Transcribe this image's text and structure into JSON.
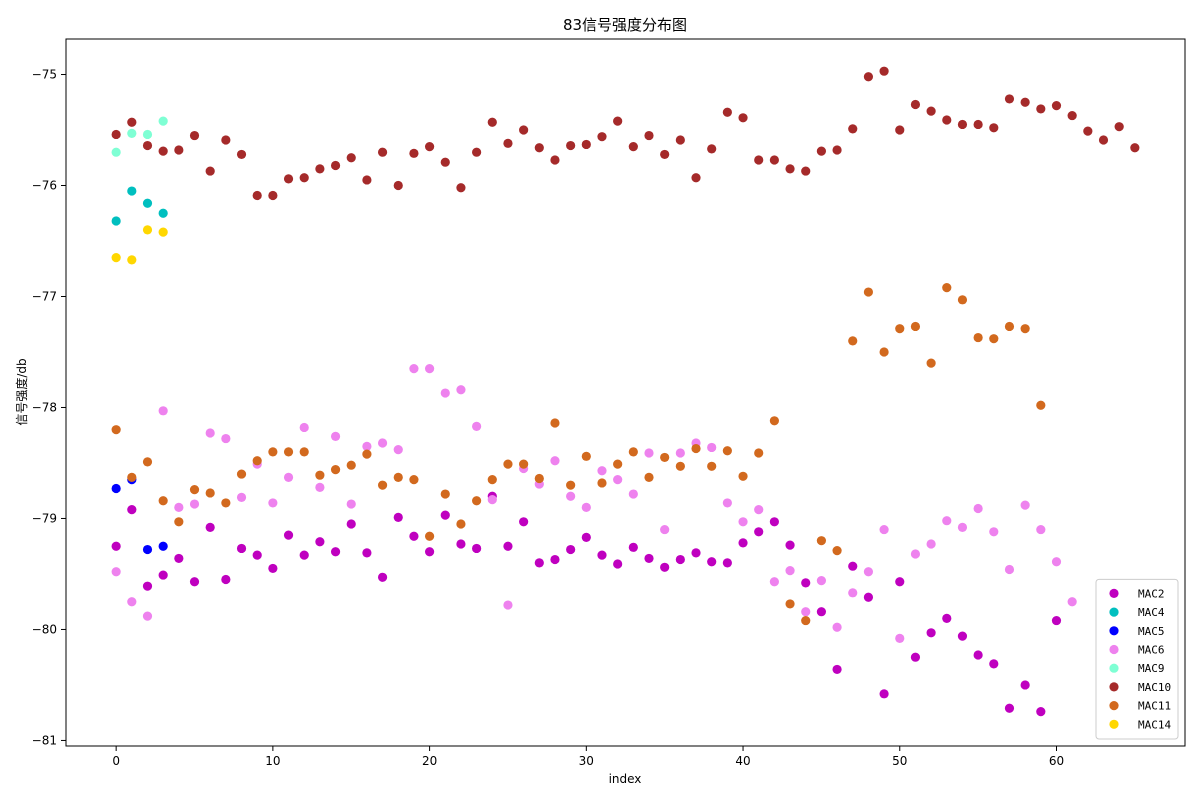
{
  "chart_data": {
    "type": "scatter",
    "title": "83信号强度分布图",
    "xlabel": "index",
    "ylabel": "信号强度/db",
    "xlim": [
      -3.2,
      68.2
    ],
    "ylim": [
      -81.05,
      -74.68
    ],
    "xticks": [
      0,
      10,
      20,
      30,
      40,
      50,
      60
    ],
    "yticks": [
      -81,
      -80,
      -79,
      -78,
      -77,
      -76,
      -75
    ],
    "grid": false,
    "legend_position": "bottom-right",
    "series": [
      {
        "name": "MAC2",
        "color": "#bf00bf",
        "x": [
          0,
          1,
          2,
          3,
          4,
          5,
          6,
          7,
          8,
          9,
          10,
          11,
          12,
          13,
          14,
          15,
          16,
          17,
          18,
          19,
          20,
          21,
          22,
          23,
          24,
          25,
          26,
          27,
          28,
          29,
          30,
          31,
          32,
          33,
          34,
          35,
          36,
          37,
          38,
          39,
          40,
          41,
          42,
          43,
          44,
          45,
          46,
          47,
          48,
          49,
          50,
          51,
          52,
          53,
          54,
          55,
          56,
          57,
          58,
          59,
          60
        ],
        "y": [
          -79.25,
          -78.92,
          -79.61,
          -79.51,
          -79.36,
          -79.57,
          -79.08,
          -79.55,
          -79.27,
          -79.33,
          -79.45,
          -79.15,
          -79.33,
          -79.21,
          -79.3,
          -79.05,
          -79.31,
          -79.53,
          -78.99,
          -79.16,
          -79.3,
          -78.97,
          -79.23,
          -79.27,
          -78.8,
          -79.25,
          -79.03,
          -79.4,
          -79.37,
          -79.28,
          -79.17,
          -79.33,
          -79.41,
          -79.26,
          -79.36,
          -79.44,
          -79.37,
          -79.31,
          -79.39,
          -79.4,
          -79.22,
          -79.12,
          -79.03,
          -79.24,
          -79.58,
          -79.84,
          -80.36,
          -79.43,
          -79.71,
          -80.58,
          -79.57,
          -80.25,
          -80.03,
          -79.9,
          -80.06,
          -80.23,
          -80.31,
          -80.71,
          -80.5,
          -80.74,
          -79.92
        ]
      },
      {
        "name": "MAC4",
        "color": "#00bfbf",
        "x": [
          0,
          1,
          2,
          3
        ],
        "y": [
          -76.32,
          -76.05,
          -76.16,
          -76.25
        ]
      },
      {
        "name": "MAC5",
        "color": "#0000ff",
        "x": [
          0,
          1,
          2,
          3
        ],
        "y": [
          -78.73,
          -78.65,
          -79.28,
          -79.25
        ]
      },
      {
        "name": "MAC6",
        "color": "#ee82ee",
        "x": [
          0,
          1,
          2,
          3,
          4,
          5,
          6,
          7,
          8,
          9,
          10,
          11,
          12,
          13,
          14,
          15,
          16,
          17,
          18,
          19,
          20,
          21,
          22,
          23,
          24,
          25,
          26,
          27,
          28,
          29,
          30,
          31,
          32,
          33,
          34,
          35,
          36,
          37,
          38,
          39,
          40,
          41,
          42,
          43,
          44,
          45,
          46,
          47,
          48,
          49,
          50,
          51,
          52,
          53,
          54,
          55,
          56,
          57,
          58,
          59,
          60,
          61
        ],
        "y": [
          -79.48,
          -79.75,
          -79.88,
          -78.03,
          -78.9,
          -78.87,
          -78.23,
          -78.28,
          -78.81,
          -78.51,
          -78.86,
          -78.63,
          -78.18,
          -78.72,
          -78.26,
          -78.87,
          -78.35,
          -78.32,
          -78.38,
          -77.65,
          -77.65,
          -77.87,
          -77.84,
          -78.17,
          -78.83,
          -79.78,
          -78.55,
          -78.69,
          -78.48,
          -78.8,
          -78.9,
          -78.57,
          -78.65,
          -78.78,
          -78.41,
          -79.1,
          -78.41,
          -78.32,
          -78.36,
          -78.86,
          -79.03,
          -78.92,
          -79.57,
          -79.47,
          -79.84,
          -79.56,
          -79.98,
          -79.67,
          -79.48,
          -79.1,
          -80.08,
          -79.32,
          -79.23,
          -79.02,
          -79.08,
          -78.91,
          -79.12,
          -79.46,
          -78.88,
          -79.1,
          -79.39,
          -79.75
        ]
      },
      {
        "name": "MAC9",
        "color": "#7fffd4",
        "x": [
          0,
          1,
          2,
          3
        ],
        "y": [
          -75.7,
          -75.53,
          -75.54,
          -75.42
        ]
      },
      {
        "name": "MAC10",
        "color": "#a52a2a",
        "x": [
          0,
          1,
          2,
          3,
          4,
          5,
          6,
          7,
          8,
          9,
          10,
          11,
          12,
          13,
          14,
          15,
          16,
          17,
          18,
          19,
          20,
          21,
          22,
          23,
          24,
          25,
          26,
          27,
          28,
          29,
          30,
          31,
          32,
          33,
          34,
          35,
          36,
          37,
          38,
          39,
          40,
          41,
          42,
          43,
          44,
          45,
          46,
          47,
          48,
          49,
          50,
          51,
          52,
          53,
          54,
          55,
          56,
          57,
          58,
          59,
          60,
          61,
          62,
          63,
          64,
          65
        ],
        "y": [
          -75.54,
          -75.43,
          -75.64,
          -75.69,
          -75.68,
          -75.55,
          -75.87,
          -75.59,
          -75.72,
          -76.09,
          -76.09,
          -75.94,
          -75.93,
          -75.85,
          -75.82,
          -75.75,
          -75.95,
          -75.7,
          -76.0,
          -75.71,
          -75.65,
          -75.79,
          -76.02,
          -75.7,
          -75.43,
          -75.62,
          -75.5,
          -75.66,
          -75.77,
          -75.64,
          -75.63,
          -75.56,
          -75.42,
          -75.65,
          -75.55,
          -75.72,
          -75.59,
          -75.93,
          -75.67,
          -75.34,
          -75.39,
          -75.77,
          -75.77,
          -75.85,
          -75.87,
          -75.69,
          -75.68,
          -75.49,
          -75.02,
          -74.97,
          -75.5,
          -75.27,
          -75.33,
          -75.41,
          -75.45,
          -75.45,
          -75.48,
          -75.22,
          -75.25,
          -75.31,
          -75.28,
          -75.37,
          -75.51,
          -75.59,
          -75.47,
          -75.66
        ]
      },
      {
        "name": "MAC11",
        "color": "#d2691e",
        "x": [
          0,
          1,
          2,
          3,
          4,
          5,
          6,
          7,
          8,
          9,
          10,
          11,
          12,
          13,
          14,
          15,
          16,
          17,
          18,
          19,
          20,
          21,
          22,
          23,
          24,
          25,
          26,
          27,
          28,
          29,
          30,
          31,
          32,
          33,
          34,
          35,
          36,
          37,
          38,
          39,
          40,
          41,
          42,
          43,
          44,
          45,
          46,
          47,
          48,
          49,
          50,
          51,
          52,
          53,
          54,
          55,
          56,
          57,
          58,
          59
        ],
        "y": [
          -78.2,
          -78.63,
          -78.49,
          -78.84,
          -79.03,
          -78.74,
          -78.77,
          -78.86,
          -78.6,
          -78.48,
          -78.4,
          -78.4,
          -78.4,
          -78.61,
          -78.56,
          -78.52,
          -78.42,
          -78.7,
          -78.63,
          -78.65,
          -79.16,
          -78.78,
          -79.05,
          -78.84,
          -78.65,
          -78.51,
          -78.51,
          -78.64,
          -78.14,
          -78.7,
          -78.44,
          -78.68,
          -78.51,
          -78.4,
          -78.63,
          -78.45,
          -78.53,
          -78.37,
          -78.53,
          -78.39,
          -78.62,
          -78.41,
          -78.12,
          -79.77,
          -79.92,
          -79.2,
          -79.29,
          -77.4,
          -76.96,
          -77.5,
          -77.29,
          -77.27,
          -77.6,
          -76.92,
          -77.03,
          -77.37,
          -77.38,
          -77.27,
          -77.29,
          -77.98
        ]
      },
      {
        "name": "MAC14",
        "color": "#ffd700",
        "x": [
          0,
          1,
          2,
          3
        ],
        "y": [
          -76.65,
          -76.67,
          -76.4,
          -76.42
        ]
      }
    ]
  }
}
